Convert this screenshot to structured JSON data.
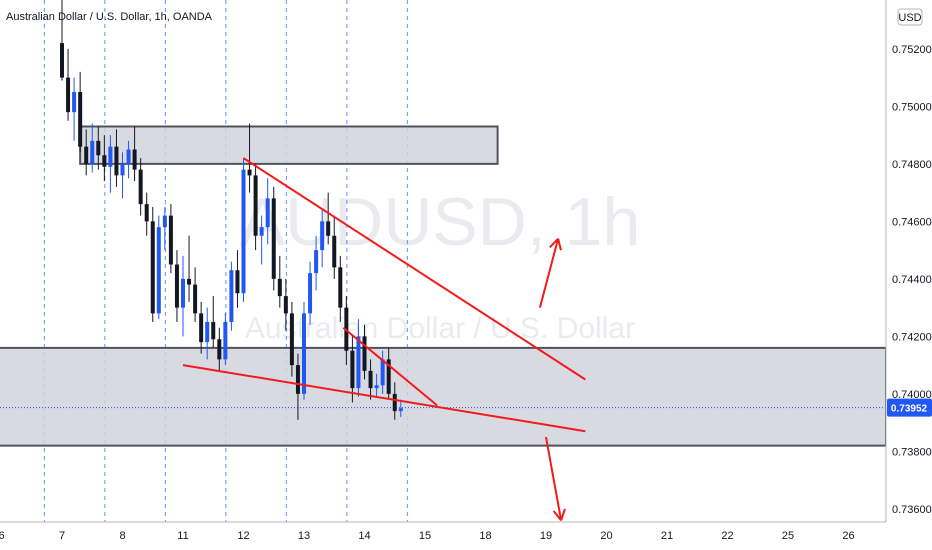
{
  "chart_data": {
    "type": "candlestick",
    "title": "Australian Dollar / U.S. Dollar, 1h, OANDA",
    "watermark_symbol": "AUDUSD, 1h",
    "watermark_name": "Australian Dollar / U.S. Dollar",
    "currency": "USD",
    "ylim": [
      0.7345,
      0.7537
    ],
    "y_ticks": [
      "0.75200",
      "0.75000",
      "0.74800",
      "0.74600",
      "0.74400",
      "0.74200",
      "0.74000",
      "0.73800",
      "0.73600"
    ],
    "y_tick_values": [
      0.752,
      0.75,
      0.748,
      0.746,
      0.744,
      0.742,
      0.74,
      0.738,
      0.736
    ],
    "x_ticks": [
      "6",
      "7",
      "8",
      "11",
      "12",
      "13",
      "14",
      "15",
      "18",
      "19",
      "20",
      "21",
      "22",
      "25",
      "26"
    ],
    "x_tick_index": [
      -10,
      0,
      10,
      20,
      30,
      40,
      50,
      60,
      70,
      80,
      90,
      100,
      110,
      120,
      130
    ],
    "current_price": "0.73952",
    "current_price_value": 0.73952,
    "colors": {
      "up": "#2157f3",
      "down": "#131722",
      "zone": "#d1d4dc",
      "trend": "#f21a1a",
      "price_line": "#2157f3",
      "session": "#2962ff"
    },
    "session_breaks_index": [
      -3,
      7,
      17,
      27,
      37,
      47,
      57
    ],
    "candles": [
      [
        0.7522,
        0.7537,
        0.7509,
        0.751
      ],
      [
        0.751,
        0.752,
        0.7495,
        0.7498
      ],
      [
        0.7498,
        0.751,
        0.7488,
        0.7505
      ],
      [
        0.7505,
        0.7512,
        0.7484,
        0.7486
      ],
      [
        0.7486,
        0.7492,
        0.7476,
        0.748
      ],
      [
        0.748,
        0.7494,
        0.7477,
        0.7488
      ],
      [
        0.7488,
        0.7493,
        0.7478,
        0.7483
      ],
      [
        0.7483,
        0.749,
        0.7474,
        0.7479
      ],
      [
        0.7479,
        0.749,
        0.747,
        0.7486
      ],
      [
        0.7486,
        0.7492,
        0.7472,
        0.7476
      ],
      [
        0.7476,
        0.7484,
        0.7468,
        0.748
      ],
      [
        0.748,
        0.7488,
        0.7475,
        0.7485
      ],
      [
        0.7485,
        0.7493,
        0.7474,
        0.7478
      ],
      [
        0.7478,
        0.7482,
        0.7462,
        0.7466
      ],
      [
        0.7466,
        0.747,
        0.7455,
        0.746
      ],
      [
        0.746,
        0.7465,
        0.7425,
        0.7428
      ],
      [
        0.7428,
        0.7462,
        0.7426,
        0.7458
      ],
      [
        0.7458,
        0.7465,
        0.745,
        0.7462
      ],
      [
        0.7462,
        0.7466,
        0.7442,
        0.7445
      ],
      [
        0.7445,
        0.745,
        0.7425,
        0.743
      ],
      [
        0.743,
        0.7448,
        0.742,
        0.744
      ],
      [
        0.744,
        0.7455,
        0.7432,
        0.7438
      ],
      [
        0.7438,
        0.7444,
        0.7425,
        0.7428
      ],
      [
        0.7428,
        0.7432,
        0.7414,
        0.7418
      ],
      [
        0.7418,
        0.743,
        0.7412,
        0.7425
      ],
      [
        0.7425,
        0.7434,
        0.7416,
        0.7419
      ],
      [
        0.7419,
        0.7423,
        0.7408,
        0.7412
      ],
      [
        0.7412,
        0.7428,
        0.741,
        0.7425
      ],
      [
        0.7425,
        0.7446,
        0.7422,
        0.7443
      ],
      [
        0.7443,
        0.745,
        0.743,
        0.7435
      ],
      [
        0.7435,
        0.7482,
        0.7432,
        0.7478
      ],
      [
        0.7478,
        0.7494,
        0.747,
        0.7476
      ],
      [
        0.7476,
        0.748,
        0.745,
        0.7455
      ],
      [
        0.7455,
        0.7462,
        0.7445,
        0.7458
      ],
      [
        0.7458,
        0.7475,
        0.7452,
        0.7468
      ],
      [
        0.7468,
        0.7472,
        0.7436,
        0.744
      ],
      [
        0.744,
        0.7448,
        0.743,
        0.7434
      ],
      [
        0.7434,
        0.744,
        0.7422,
        0.7428
      ],
      [
        0.7428,
        0.7432,
        0.7406,
        0.741
      ],
      [
        0.741,
        0.7414,
        0.7391,
        0.74
      ],
      [
        0.74,
        0.7432,
        0.7398,
        0.7428
      ],
      [
        0.7428,
        0.7446,
        0.7424,
        0.7442
      ],
      [
        0.7442,
        0.7455,
        0.7436,
        0.745
      ],
      [
        0.745,
        0.7464,
        0.7444,
        0.746
      ],
      [
        0.746,
        0.747,
        0.7452,
        0.7455
      ],
      [
        0.7455,
        0.7462,
        0.744,
        0.7444
      ],
      [
        0.7444,
        0.7448,
        0.7425,
        0.743
      ],
      [
        0.743,
        0.7434,
        0.741,
        0.7415
      ],
      [
        0.7415,
        0.742,
        0.7397,
        0.7402
      ],
      [
        0.7402,
        0.7426,
        0.7399,
        0.742
      ],
      [
        0.742,
        0.7424,
        0.7405,
        0.7408
      ],
      [
        0.7408,
        0.7412,
        0.7398,
        0.7402
      ],
      [
        0.7402,
        0.7407,
        0.7399,
        0.7403
      ],
      [
        0.7403,
        0.7415,
        0.74,
        0.7412
      ],
      [
        0.7412,
        0.7416,
        0.7398,
        0.74
      ],
      [
        0.74,
        0.7404,
        0.7391,
        0.7394
      ],
      [
        0.7394,
        0.7398,
        0.7392,
        0.7395
      ]
    ],
    "zones": [
      {
        "y_top": 0.7493,
        "y_bottom": 0.748,
        "from_index": 3,
        "to_index": 72
      },
      {
        "y_top": 0.7416,
        "y_bottom": 0.7382,
        "from_index": -15,
        "to_index": 150
      }
    ],
    "trend_lines": [
      {
        "x1": 30.0,
        "y1": 0.7482,
        "x2": 86.5,
        "y2": 0.7405
      },
      {
        "x1": 20.0,
        "y1": 0.741,
        "x2": 86.5,
        "y2": 0.7387
      },
      {
        "x1": 46.5,
        "y1": 0.7423,
        "x2": 62.0,
        "y2": 0.7396
      }
    ],
    "arrows": [
      {
        "x1": 79.0,
        "y1": 0.743,
        "x2": 82.0,
        "y2": 0.7454
      },
      {
        "x1": 80.0,
        "y1": 0.7385,
        "x2": 82.5,
        "y2": 0.7356
      }
    ]
  }
}
